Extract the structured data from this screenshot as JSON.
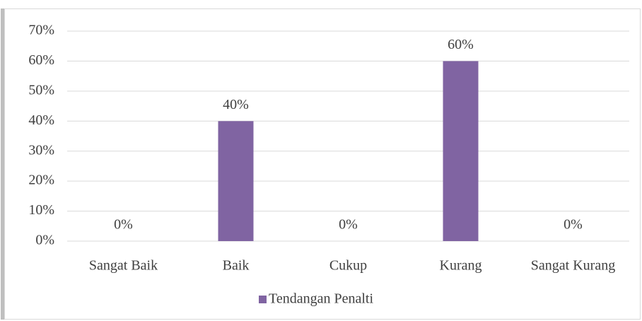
{
  "chart_data": {
    "type": "bar",
    "categories": [
      "Sangat Baik",
      "Baik",
      "Cukup",
      "Kurang",
      "Sangat Kurang"
    ],
    "series": [
      {
        "name": "Tendangan Penalti",
        "color": "#8064a2",
        "values": [
          0,
          40,
          0,
          60,
          0
        ],
        "value_labels": [
          "0%",
          "40%",
          "0%",
          "60%",
          "0%"
        ]
      }
    ],
    "ylim": [
      0,
      70
    ],
    "yticks": [
      {
        "value": 0,
        "label": "0%"
      },
      {
        "value": 10,
        "label": "10%"
      },
      {
        "value": 20,
        "label": "20%"
      },
      {
        "value": 30,
        "label": "30%"
      },
      {
        "value": 40,
        "label": "40%"
      },
      {
        "value": 50,
        "label": "50%"
      },
      {
        "value": 60,
        "label": "60%"
      },
      {
        "value": 70,
        "label": "70%"
      }
    ],
    "grid": true,
    "legend": "bottom"
  }
}
